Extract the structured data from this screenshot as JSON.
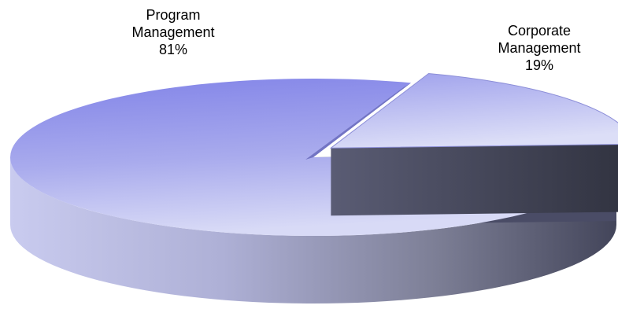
{
  "chart_data": {
    "type": "pie",
    "style": "3d-exploded",
    "slices": [
      {
        "label_line1": "Program",
        "label_line2": "Management",
        "percent_label": "81%",
        "value": 81
      },
      {
        "label_line1": "Corporate",
        "label_line2": "Management",
        "percent_label": "19%",
        "value": 19
      }
    ],
    "colors": {
      "top_light": "#cfd2f3",
      "top_dark": "#7e80e6",
      "side_light": "#c7c9ee",
      "side_dark": "#3d3f52"
    }
  }
}
